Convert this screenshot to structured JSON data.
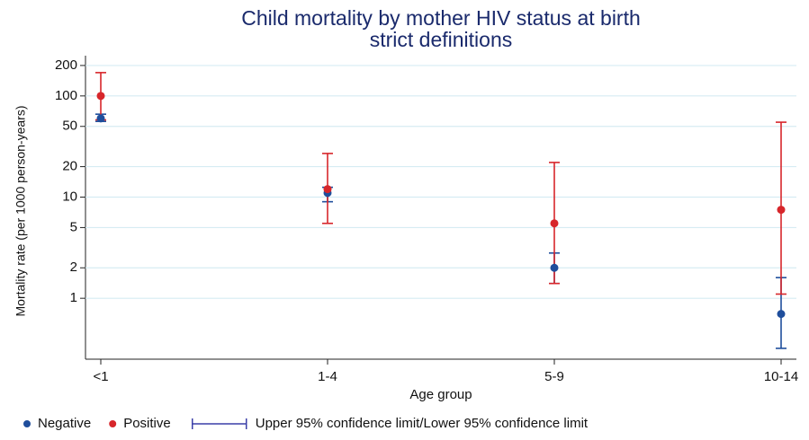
{
  "chart_data": {
    "type": "scatter",
    "title": "Child mortality by mother HIV status at birth",
    "subtitle": "strict definitions",
    "x_label": "Age group",
    "y_label": "Mortality  rate (per 1000 person-years)",
    "categories": [
      "<1",
      "1-4",
      "5-9",
      "10-14"
    ],
    "log_y": true,
    "grid": true,
    "legend": "bottom",
    "ylim": [
      0.25,
      250
    ],
    "yticks": [
      1,
      2,
      5,
      10,
      20,
      50,
      100,
      200
    ],
    "ci_label": "Upper 95% confidence limit/Lower 95% confidence limit",
    "ci_color": "#3a3fa8",
    "series": [
      {
        "name": "Negative",
        "color": "#1f4e9c",
        "values": [
          60,
          11,
          2,
          0.7
        ],
        "lower": [
          56,
          9,
          1.4,
          0.32
        ],
        "upper": [
          66,
          12.5,
          2.8,
          1.6
        ]
      },
      {
        "name": "Positive",
        "color": "#d7262b",
        "values": [
          100,
          12,
          5.5,
          7.5
        ],
        "lower": [
          58,
          5.5,
          1.4,
          1.1
        ],
        "upper": [
          170,
          27,
          22,
          55
        ]
      }
    ]
  }
}
